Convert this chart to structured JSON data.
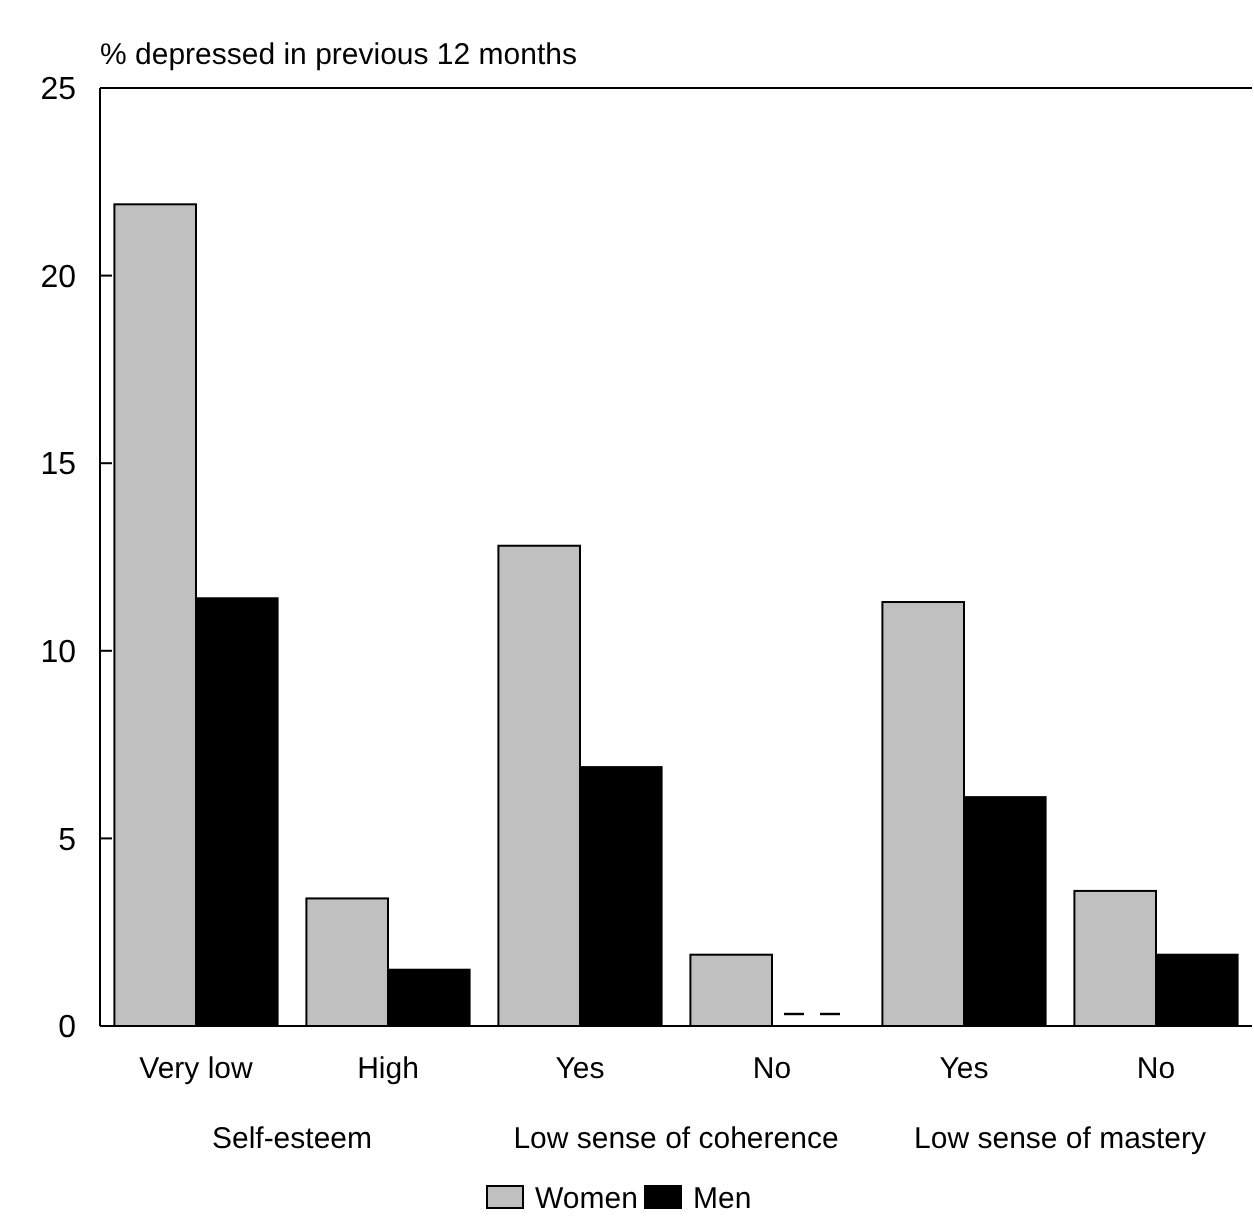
{
  "chart_data": {
    "type": "bar",
    "title": "% depressed in previous 12 months",
    "categories": [
      "Very low",
      "High",
      "Yes",
      "No",
      "Yes",
      "No"
    ],
    "series": [
      {
        "name": "Women",
        "color": "#c0c0c0",
        "values": [
          21.9,
          3.4,
          12.8,
          1.9,
          11.3,
          3.6
        ]
      },
      {
        "name": "Men",
        "color": "#000000",
        "values": [
          11.4,
          1.5,
          6.9,
          null,
          6.1,
          1.9
        ]
      }
    ],
    "annotations": [
      "Self-esteem",
      "Low sense of coherence",
      "Low sense of mastery"
    ],
    "ylim": [
      0,
      25
    ],
    "yticks": [
      0,
      5,
      10,
      15,
      20,
      25
    ],
    "grid": false,
    "legend": "bottom"
  }
}
